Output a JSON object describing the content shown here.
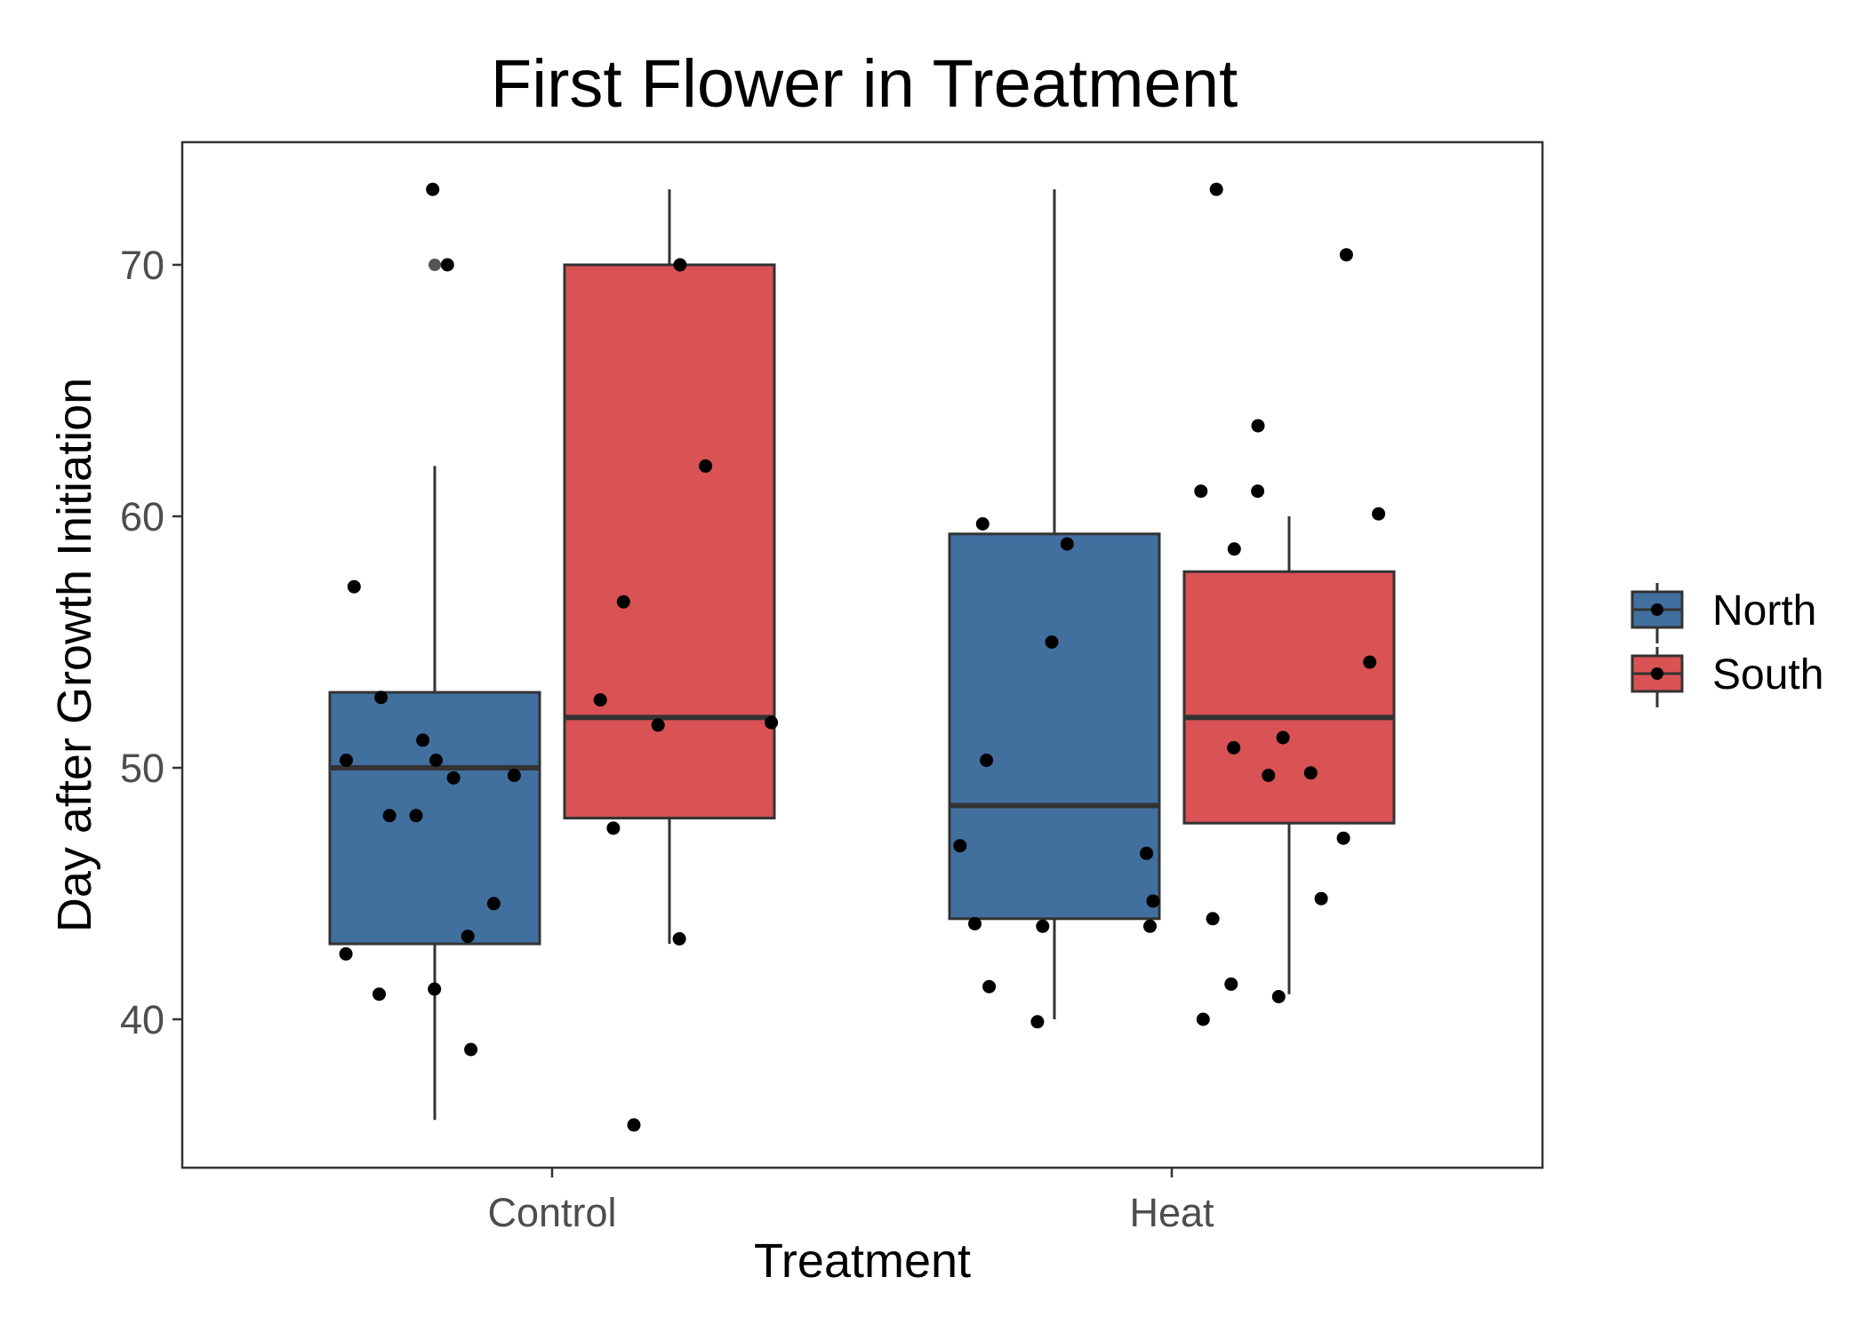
{
  "chart_data": {
    "type": "boxplot",
    "title": "First Flower in Treatment",
    "xlabel": "Treatment",
    "ylabel": "Day after Growth Initiation",
    "categories": [
      "Control",
      "Heat"
    ],
    "yticks": [
      40,
      50,
      60,
      70
    ],
    "ylim": [
      34,
      75
    ],
    "grid": false,
    "legend_position": "right",
    "series": [
      {
        "name": "North",
        "color": "#41709f",
        "boxes": [
          {
            "category": "Control",
            "whisker_low": 36,
            "q1": 43,
            "median": 50,
            "q3": 53,
            "whisker_high": 62,
            "outliers": [
              70
            ]
          },
          {
            "category": "Heat",
            "whisker_low": 40,
            "q1": 44,
            "median": 48.5,
            "q3": 59.3,
            "whisker_high": 73,
            "outliers": []
          }
        ],
        "points": [
          {
            "category": "Control",
            "values": [
              73,
              70,
              57.2,
              52.8,
              51.1,
              50.3,
              50.3,
              49.7,
              49.6,
              48.1,
              48.1,
              44.6,
              43.3,
              42.6,
              41.2,
              41.0,
              38.8
            ]
          },
          {
            "category": "Heat",
            "values": [
              59.7,
              58.9,
              55.0,
              50.3,
              46.9,
              46.6,
              44.7,
              43.8,
              43.7,
              43.7,
              41.3,
              39.9
            ]
          }
        ]
      },
      {
        "name": "South",
        "color": "#d95254",
        "boxes": [
          {
            "category": "Control",
            "whisker_low": 43,
            "q1": 48,
            "median": 52,
            "q3": 70,
            "whisker_high": 73,
            "outliers": []
          },
          {
            "category": "Heat",
            "whisker_low": 41,
            "q1": 47.8,
            "median": 52,
            "q3": 57.8,
            "whisker_high": 60,
            "outliers": []
          }
        ],
        "points": [
          {
            "category": "Control",
            "values": [
              70,
              62,
              56.6,
              52.7,
              51.8,
              51.7,
              47.6,
              43.2,
              35.8
            ]
          },
          {
            "category": "Heat",
            "values": [
              73,
              70.4,
              63.6,
              61.0,
              61.0,
              60.1,
              58.7,
              54.2,
              51.2,
              50.8,
              49.8,
              49.7,
              47.2,
              44.8,
              44.0,
              41.4,
              40.9,
              40.0
            ]
          }
        ]
      }
    ]
  }
}
